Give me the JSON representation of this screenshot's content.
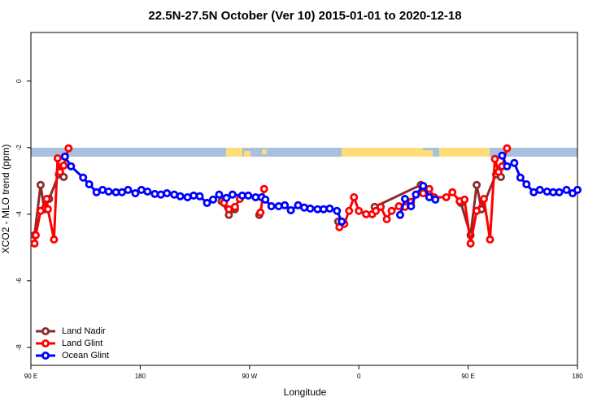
{
  "chart_data": {
    "type": "line",
    "title": "22.5N-27.5N October (Ver 10)   2015-01-01 to 2020-12-18",
    "x_label": "Longitude",
    "y_label": "XCO2 - MLO trend (ppm)",
    "xlim": [
      90,
      540
    ],
    "ylim": [
      -8.54,
      1.46
    ],
    "xticks": [
      {
        "value": 90,
        "label": "90 E"
      },
      180,
      {
        "value": 270,
        "label": "90 W"
      },
      {
        "value": 360,
        "label": "0"
      },
      {
        "value": 450,
        "label": "90 E"
      },
      {
        "value": 540,
        "label": "180"
      }
    ],
    "yticks": [
      0,
      -2,
      -4,
      -6,
      -8
    ],
    "legend": "bottomleft",
    "series": [
      {
        "name": "Land Nadir",
        "color": "#8b2b2b",
        "x": [
          93,
          98,
          101,
          105,
          113,
          117,
          null,
          247,
          253,
          258,
          null,
          278,
          null,
          343,
          null,
          373,
          411,
          null,
          444,
          452,
          457,
          461,
          473,
          477
        ],
        "values": [
          -4.63,
          -3.12,
          -3.85,
          -3.54,
          -2.8,
          -2.88,
          null,
          -3.61,
          -4.02,
          -3.85,
          null,
          -4.02,
          null,
          -4.22,
          null,
          -3.78,
          -3.12,
          null,
          -3.66,
          -4.63,
          -3.12,
          -3.85,
          -2.8,
          -2.88
        ]
      },
      {
        "name": "Land Glint",
        "color": "#ff0000",
        "x": [
          93,
          94,
          98,
          103,
          104,
          109,
          112,
          114,
          117,
          121,
          null,
          249,
          253,
          258,
          262,
          null,
          279,
          282,
          null,
          344,
          348,
          352,
          356,
          360,
          366,
          371,
          374,
          378,
          383,
          387,
          393,
          398,
          403,
          407,
          413,
          418,
          422,
          432,
          437,
          443,
          447,
          452,
          457,
          463,
          468,
          472,
          475,
          478,
          482
        ],
        "values": [
          -4.88,
          -4.63,
          -3.9,
          -3.54,
          -3.85,
          -4.76,
          -2.32,
          -2.73,
          -2.54,
          -2.02,
          null,
          -3.66,
          -3.85,
          -3.78,
          -3.54,
          null,
          -3.95,
          -3.24,
          null,
          -4.39,
          -4.29,
          -3.9,
          -3.49,
          -3.9,
          -4.0,
          -4.0,
          -3.9,
          -3.78,
          -4.15,
          -3.9,
          -3.76,
          -3.78,
          -3.63,
          -3.41,
          -3.37,
          -3.24,
          -3.49,
          -3.49,
          -3.34,
          -3.61,
          -3.56,
          -4.88,
          -3.9,
          -3.54,
          -4.76,
          -2.34,
          -2.73,
          -2.56,
          -2.02
        ]
      },
      {
        "name": "Ocean Glint",
        "color": "#0000ff",
        "x": [
          118,
          123,
          133,
          138,
          144,
          149,
          154,
          160,
          165,
          170,
          176,
          181,
          186,
          192,
          197,
          202,
          208,
          213,
          219,
          224,
          229,
          235,
          240,
          245,
          251,
          256,
          264,
          269,
          275,
          280,
          283,
          288,
          294,
          299,
          304,
          310,
          315,
          320,
          326,
          331,
          336,
          342,
          346,
          null,
          394,
          398,
          403,
          407,
          413,
          418,
          423,
          null,
          478,
          482,
          488,
          493,
          498,
          504,
          509,
          515,
          520,
          525,
          531,
          536,
          540
        ],
        "values": [
          -2.27,
          -2.56,
          -2.9,
          -3.1,
          -3.34,
          -3.27,
          -3.32,
          -3.34,
          -3.34,
          -3.27,
          -3.37,
          -3.27,
          -3.32,
          -3.39,
          -3.41,
          -3.37,
          -3.41,
          -3.46,
          -3.49,
          -3.44,
          -3.46,
          -3.66,
          -3.56,
          -3.41,
          -3.51,
          -3.41,
          -3.44,
          -3.44,
          -3.49,
          -3.49,
          -3.56,
          -3.76,
          -3.76,
          -3.73,
          -3.88,
          -3.73,
          -3.8,
          -3.83,
          -3.85,
          -3.85,
          -3.83,
          -3.9,
          -4.22,
          null,
          -4.02,
          -3.54,
          -3.76,
          -3.41,
          -3.15,
          -3.49,
          -3.56,
          null,
          -2.24,
          -2.56,
          -2.46,
          -2.9,
          -3.1,
          -3.34,
          -3.27,
          -3.32,
          -3.34,
          -3.34,
          -3.27,
          -3.37,
          -3.27
        ]
      }
    ]
  }
}
